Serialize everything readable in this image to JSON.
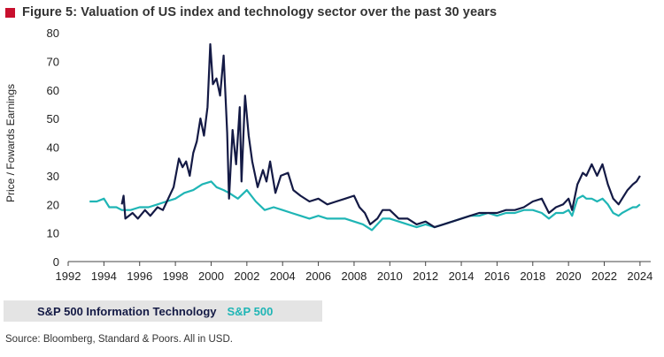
{
  "header": {
    "title": "Figure 5:  Valuation of US index and technology sector over the past 30 years"
  },
  "colors": {
    "title_square": "#c8102e",
    "tech": "#141a45",
    "sp500": "#1fb5b5",
    "axis": "#444444",
    "legend_bg": "#e4e4e4"
  },
  "legend": {
    "tech_label": "S&P 500 Information Technology",
    "sp500_label": "S&P 500"
  },
  "footer": {
    "source": "Source: Bloomberg, Standard & Poors.  All in USD."
  },
  "chart_data": {
    "type": "line",
    "title": "Figure 5:  Valuation of US index and technology sector over the past 30 years",
    "xlabel": "",
    "ylabel": "Price / Fowards Earnings",
    "xlim": [
      1992,
      2024.6
    ],
    "ylim": [
      0,
      80
    ],
    "xticks": [
      1992,
      1994,
      1996,
      1998,
      2000,
      2002,
      2004,
      2006,
      2008,
      2010,
      2012,
      2014,
      2016,
      2018,
      2020,
      2022,
      2024
    ],
    "yticks": [
      0,
      10,
      20,
      30,
      40,
      50,
      60,
      70,
      80
    ],
    "grid": false,
    "legend_position": "bottom-left",
    "series": [
      {
        "name": "S&P 500 Information Technology",
        "color": "#141a45",
        "points": [
          [
            1995.0,
            20
          ],
          [
            1995.1,
            23
          ],
          [
            1995.2,
            15
          ],
          [
            1995.6,
            17
          ],
          [
            1995.9,
            15
          ],
          [
            1996.3,
            18
          ],
          [
            1996.6,
            16
          ],
          [
            1997.0,
            19
          ],
          [
            1997.3,
            18
          ],
          [
            1997.6,
            22
          ],
          [
            1997.9,
            26
          ],
          [
            1998.2,
            36
          ],
          [
            1998.4,
            33
          ],
          [
            1998.6,
            35
          ],
          [
            1998.8,
            30
          ],
          [
            1999.0,
            38
          ],
          [
            1999.2,
            42
          ],
          [
            1999.4,
            50
          ],
          [
            1999.6,
            44
          ],
          [
            1999.8,
            54
          ],
          [
            1999.95,
            76
          ],
          [
            2000.1,
            62
          ],
          [
            2000.3,
            64
          ],
          [
            2000.5,
            58
          ],
          [
            2000.7,
            72
          ],
          [
            2000.9,
            45
          ],
          [
            2001.0,
            22
          ],
          [
            2001.2,
            46
          ],
          [
            2001.4,
            34
          ],
          [
            2001.6,
            54
          ],
          [
            2001.7,
            28
          ],
          [
            2001.9,
            58
          ],
          [
            2002.1,
            44
          ],
          [
            2002.3,
            35
          ],
          [
            2002.6,
            26
          ],
          [
            2002.9,
            32
          ],
          [
            2003.1,
            28
          ],
          [
            2003.3,
            35
          ],
          [
            2003.6,
            24
          ],
          [
            2003.9,
            30
          ],
          [
            2004.3,
            31
          ],
          [
            2004.6,
            25
          ],
          [
            2005.0,
            23
          ],
          [
            2005.5,
            21
          ],
          [
            2006.0,
            22
          ],
          [
            2006.5,
            20
          ],
          [
            2007.0,
            21
          ],
          [
            2007.5,
            22
          ],
          [
            2008.0,
            23
          ],
          [
            2008.3,
            19
          ],
          [
            2008.6,
            17
          ],
          [
            2008.9,
            13
          ],
          [
            2009.3,
            15
          ],
          [
            2009.6,
            18
          ],
          [
            2010.0,
            18
          ],
          [
            2010.5,
            15
          ],
          [
            2011.0,
            15
          ],
          [
            2011.5,
            13
          ],
          [
            2012.0,
            14
          ],
          [
            2012.5,
            12
          ],
          [
            2013.0,
            13
          ],
          [
            2013.5,
            14
          ],
          [
            2014.0,
            15
          ],
          [
            2014.5,
            16
          ],
          [
            2015.0,
            17
          ],
          [
            2015.5,
            17
          ],
          [
            2016.0,
            17
          ],
          [
            2016.5,
            18
          ],
          [
            2017.0,
            18
          ],
          [
            2017.5,
            19
          ],
          [
            2018.0,
            21
          ],
          [
            2018.5,
            22
          ],
          [
            2018.9,
            17
          ],
          [
            2019.3,
            19
          ],
          [
            2019.7,
            20
          ],
          [
            2020.0,
            22
          ],
          [
            2020.2,
            18
          ],
          [
            2020.5,
            27
          ],
          [
            2020.8,
            31
          ],
          [
            2021.0,
            30
          ],
          [
            2021.3,
            34
          ],
          [
            2021.6,
            30
          ],
          [
            2021.9,
            34
          ],
          [
            2022.2,
            27
          ],
          [
            2022.5,
            22
          ],
          [
            2022.8,
            20
          ],
          [
            2023.0,
            22
          ],
          [
            2023.3,
            25
          ],
          [
            2023.6,
            27
          ],
          [
            2023.8,
            28
          ],
          [
            2024.0,
            30
          ]
        ]
      },
      {
        "name": "S&P 500",
        "color": "#1fb5b5",
        "points": [
          [
            1993.2,
            21
          ],
          [
            1993.6,
            21
          ],
          [
            1994.0,
            22
          ],
          [
            1994.3,
            19
          ],
          [
            1994.7,
            19
          ],
          [
            1995.0,
            18
          ],
          [
            1995.5,
            18
          ],
          [
            1996.0,
            19
          ],
          [
            1996.5,
            19
          ],
          [
            1997.0,
            20
          ],
          [
            1997.5,
            21
          ],
          [
            1998.0,
            22
          ],
          [
            1998.5,
            24
          ],
          [
            1999.0,
            25
          ],
          [
            1999.5,
            27
          ],
          [
            2000.0,
            28
          ],
          [
            2000.3,
            26
          ],
          [
            2000.7,
            25
          ],
          [
            2001.0,
            24
          ],
          [
            2001.5,
            22
          ],
          [
            2002.0,
            25
          ],
          [
            2002.5,
            21
          ],
          [
            2003.0,
            18
          ],
          [
            2003.5,
            19
          ],
          [
            2004.0,
            18
          ],
          [
            2004.5,
            17
          ],
          [
            2005.0,
            16
          ],
          [
            2005.5,
            15
          ],
          [
            2006.0,
            16
          ],
          [
            2006.5,
            15
          ],
          [
            2007.0,
            15
          ],
          [
            2007.5,
            15
          ],
          [
            2008.0,
            14
          ],
          [
            2008.5,
            13
          ],
          [
            2009.0,
            11
          ],
          [
            2009.3,
            13
          ],
          [
            2009.6,
            15
          ],
          [
            2010.0,
            15
          ],
          [
            2010.5,
            14
          ],
          [
            2011.0,
            13
          ],
          [
            2011.5,
            12
          ],
          [
            2012.0,
            13
          ],
          [
            2012.5,
            12
          ],
          [
            2013.0,
            13
          ],
          [
            2013.5,
            14
          ],
          [
            2014.0,
            15
          ],
          [
            2014.5,
            16
          ],
          [
            2015.0,
            16
          ],
          [
            2015.5,
            17
          ],
          [
            2016.0,
            16
          ],
          [
            2016.5,
            17
          ],
          [
            2017.0,
            17
          ],
          [
            2017.5,
            18
          ],
          [
            2018.0,
            18
          ],
          [
            2018.5,
            17
          ],
          [
            2018.9,
            15
          ],
          [
            2019.3,
            17
          ],
          [
            2019.7,
            17
          ],
          [
            2020.0,
            18
          ],
          [
            2020.2,
            16
          ],
          [
            2020.5,
            22
          ],
          [
            2020.8,
            23
          ],
          [
            2021.0,
            22
          ],
          [
            2021.3,
            22
          ],
          [
            2021.6,
            21
          ],
          [
            2021.9,
            22
          ],
          [
            2022.2,
            20
          ],
          [
            2022.5,
            17
          ],
          [
            2022.8,
            16
          ],
          [
            2023.0,
            17
          ],
          [
            2023.3,
            18
          ],
          [
            2023.6,
            19
          ],
          [
            2023.8,
            19
          ],
          [
            2024.0,
            20
          ]
        ]
      }
    ]
  }
}
